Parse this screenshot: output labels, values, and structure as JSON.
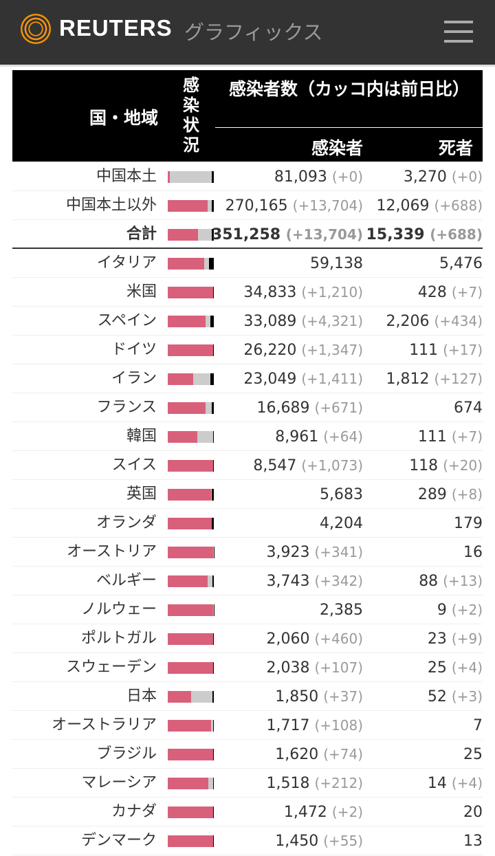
{
  "header": {
    "brand": "REUTERS",
    "subtitle": "グラフィックス",
    "logo": "reuters-dot-logo",
    "menu_icon": "hamburger-icon"
  },
  "colors": {
    "active": "#d9607a",
    "recovered": "#cccccc",
    "deaths": "#000000"
  },
  "table": {
    "headers": {
      "region": "国・地域",
      "status": "感染状況",
      "cases": "感染者数（カッコ内は前日比）",
      "infected": "感染者",
      "deaths": "死者"
    },
    "rows": [
      {
        "name": "中国本土",
        "inf": "81,093",
        "infc": "(+0)",
        "dth": "3,270",
        "dthc": "(+0)",
        "bar": [
          5,
          91,
          4
        ]
      },
      {
        "name": "中国本土以外",
        "inf": "270,165",
        "infc": "(+13,704)",
        "dth": "12,069",
        "dthc": "(+688)",
        "bar": [
          86,
          10,
          4
        ]
      },
      {
        "name": "合計",
        "inf": "351,258",
        "infc": "(+13,704)",
        "dth": "15,339",
        "dthc": "(+688)",
        "bar": [
          66,
          29,
          5
        ],
        "total": true
      },
      {
        "name": "イタリア",
        "inf": "59,138",
        "infc": "",
        "dth": "5,476",
        "dthc": "",
        "bar": [
          79,
          11,
          10
        ]
      },
      {
        "name": "米国",
        "inf": "34,833",
        "infc": "(+1,210)",
        "dth": "428",
        "dthc": "(+7)",
        "bar": [
          98,
          0.5,
          1.5
        ]
      },
      {
        "name": "スペイン",
        "inf": "33,089",
        "infc": "(+4,321)",
        "dth": "2,206",
        "dthc": "(+434)",
        "bar": [
          82,
          11,
          7
        ]
      },
      {
        "name": "ドイツ",
        "inf": "26,220",
        "infc": "(+1,347)",
        "dth": "111",
        "dthc": "(+17)",
        "bar": [
          98.5,
          0.5,
          1
        ]
      },
      {
        "name": "イラン",
        "inf": "23,049",
        "infc": "(+1,411)",
        "dth": "1,812",
        "dthc": "(+127)",
        "bar": [
          55,
          37,
          8
        ]
      },
      {
        "name": "フランス",
        "inf": "16,689",
        "infc": "(+671)",
        "dth": "674",
        "dthc": "",
        "bar": [
          82,
          14,
          4
        ]
      },
      {
        "name": "韓国",
        "inf": "8,961",
        "infc": "(+64)",
        "dth": "111",
        "dthc": "(+7)",
        "bar": [
          64,
          35,
          1
        ]
      },
      {
        "name": "スイス",
        "inf": "8,547",
        "infc": "(+1,073)",
        "dth": "118",
        "dthc": "(+20)",
        "bar": [
          98,
          0.5,
          1.5
        ]
      },
      {
        "name": "英国",
        "inf": "5,683",
        "infc": "",
        "dth": "289",
        "dthc": "(+8)",
        "bar": [
          94,
          1,
          5
        ]
      },
      {
        "name": "オランダ",
        "inf": "4,204",
        "infc": "",
        "dth": "179",
        "dthc": "",
        "bar": [
          95,
          1,
          4
        ]
      },
      {
        "name": "オーストリア",
        "inf": "3,923",
        "infc": "(+341)",
        "dth": "16",
        "dthc": "",
        "bar": [
          99,
          0.5,
          0.5
        ]
      },
      {
        "name": "ベルギー",
        "inf": "3,743",
        "infc": "(+342)",
        "dth": "88",
        "dthc": "(+13)",
        "bar": [
          87,
          10,
          3
        ]
      },
      {
        "name": "ノルウェー",
        "inf": "2,385",
        "infc": "",
        "dth": "9",
        "dthc": "(+2)",
        "bar": [
          99,
          0.5,
          0.5
        ]
      },
      {
        "name": "ポルトガル",
        "inf": "2,060",
        "infc": "(+460)",
        "dth": "23",
        "dthc": "(+9)",
        "bar": [
          98.5,
          0.5,
          1
        ]
      },
      {
        "name": "スウェーデン",
        "inf": "2,038",
        "infc": "(+107)",
        "dth": "25",
        "dthc": "(+4)",
        "bar": [
          98.5,
          0.5,
          1
        ]
      },
      {
        "name": "日本",
        "inf": "1,850",
        "infc": "(+37)",
        "dth": "52",
        "dthc": "(+3)",
        "bar": [
          50,
          47,
          3
        ]
      },
      {
        "name": "オーストラリア",
        "inf": "1,717",
        "infc": "(+108)",
        "dth": "7",
        "dthc": "",
        "bar": [
          94,
          5,
          1
        ]
      },
      {
        "name": "ブラジル",
        "inf": "1,620",
        "infc": "(+74)",
        "dth": "25",
        "dthc": "",
        "bar": [
          98.5,
          0,
          1.5
        ]
      },
      {
        "name": "マレーシア",
        "inf": "1,518",
        "infc": "(+212)",
        "dth": "14",
        "dthc": "(+4)",
        "bar": [
          88,
          11,
          1
        ]
      },
      {
        "name": "カナダ",
        "inf": "1,472",
        "infc": "(+2)",
        "dth": "20",
        "dthc": "",
        "bar": [
          98.5,
          0.5,
          1
        ]
      },
      {
        "name": "デンマーク",
        "inf": "1,450",
        "infc": "(+55)",
        "dth": "13",
        "dthc": "",
        "bar": [
          98.5,
          0.5,
          1
        ]
      }
    ]
  }
}
